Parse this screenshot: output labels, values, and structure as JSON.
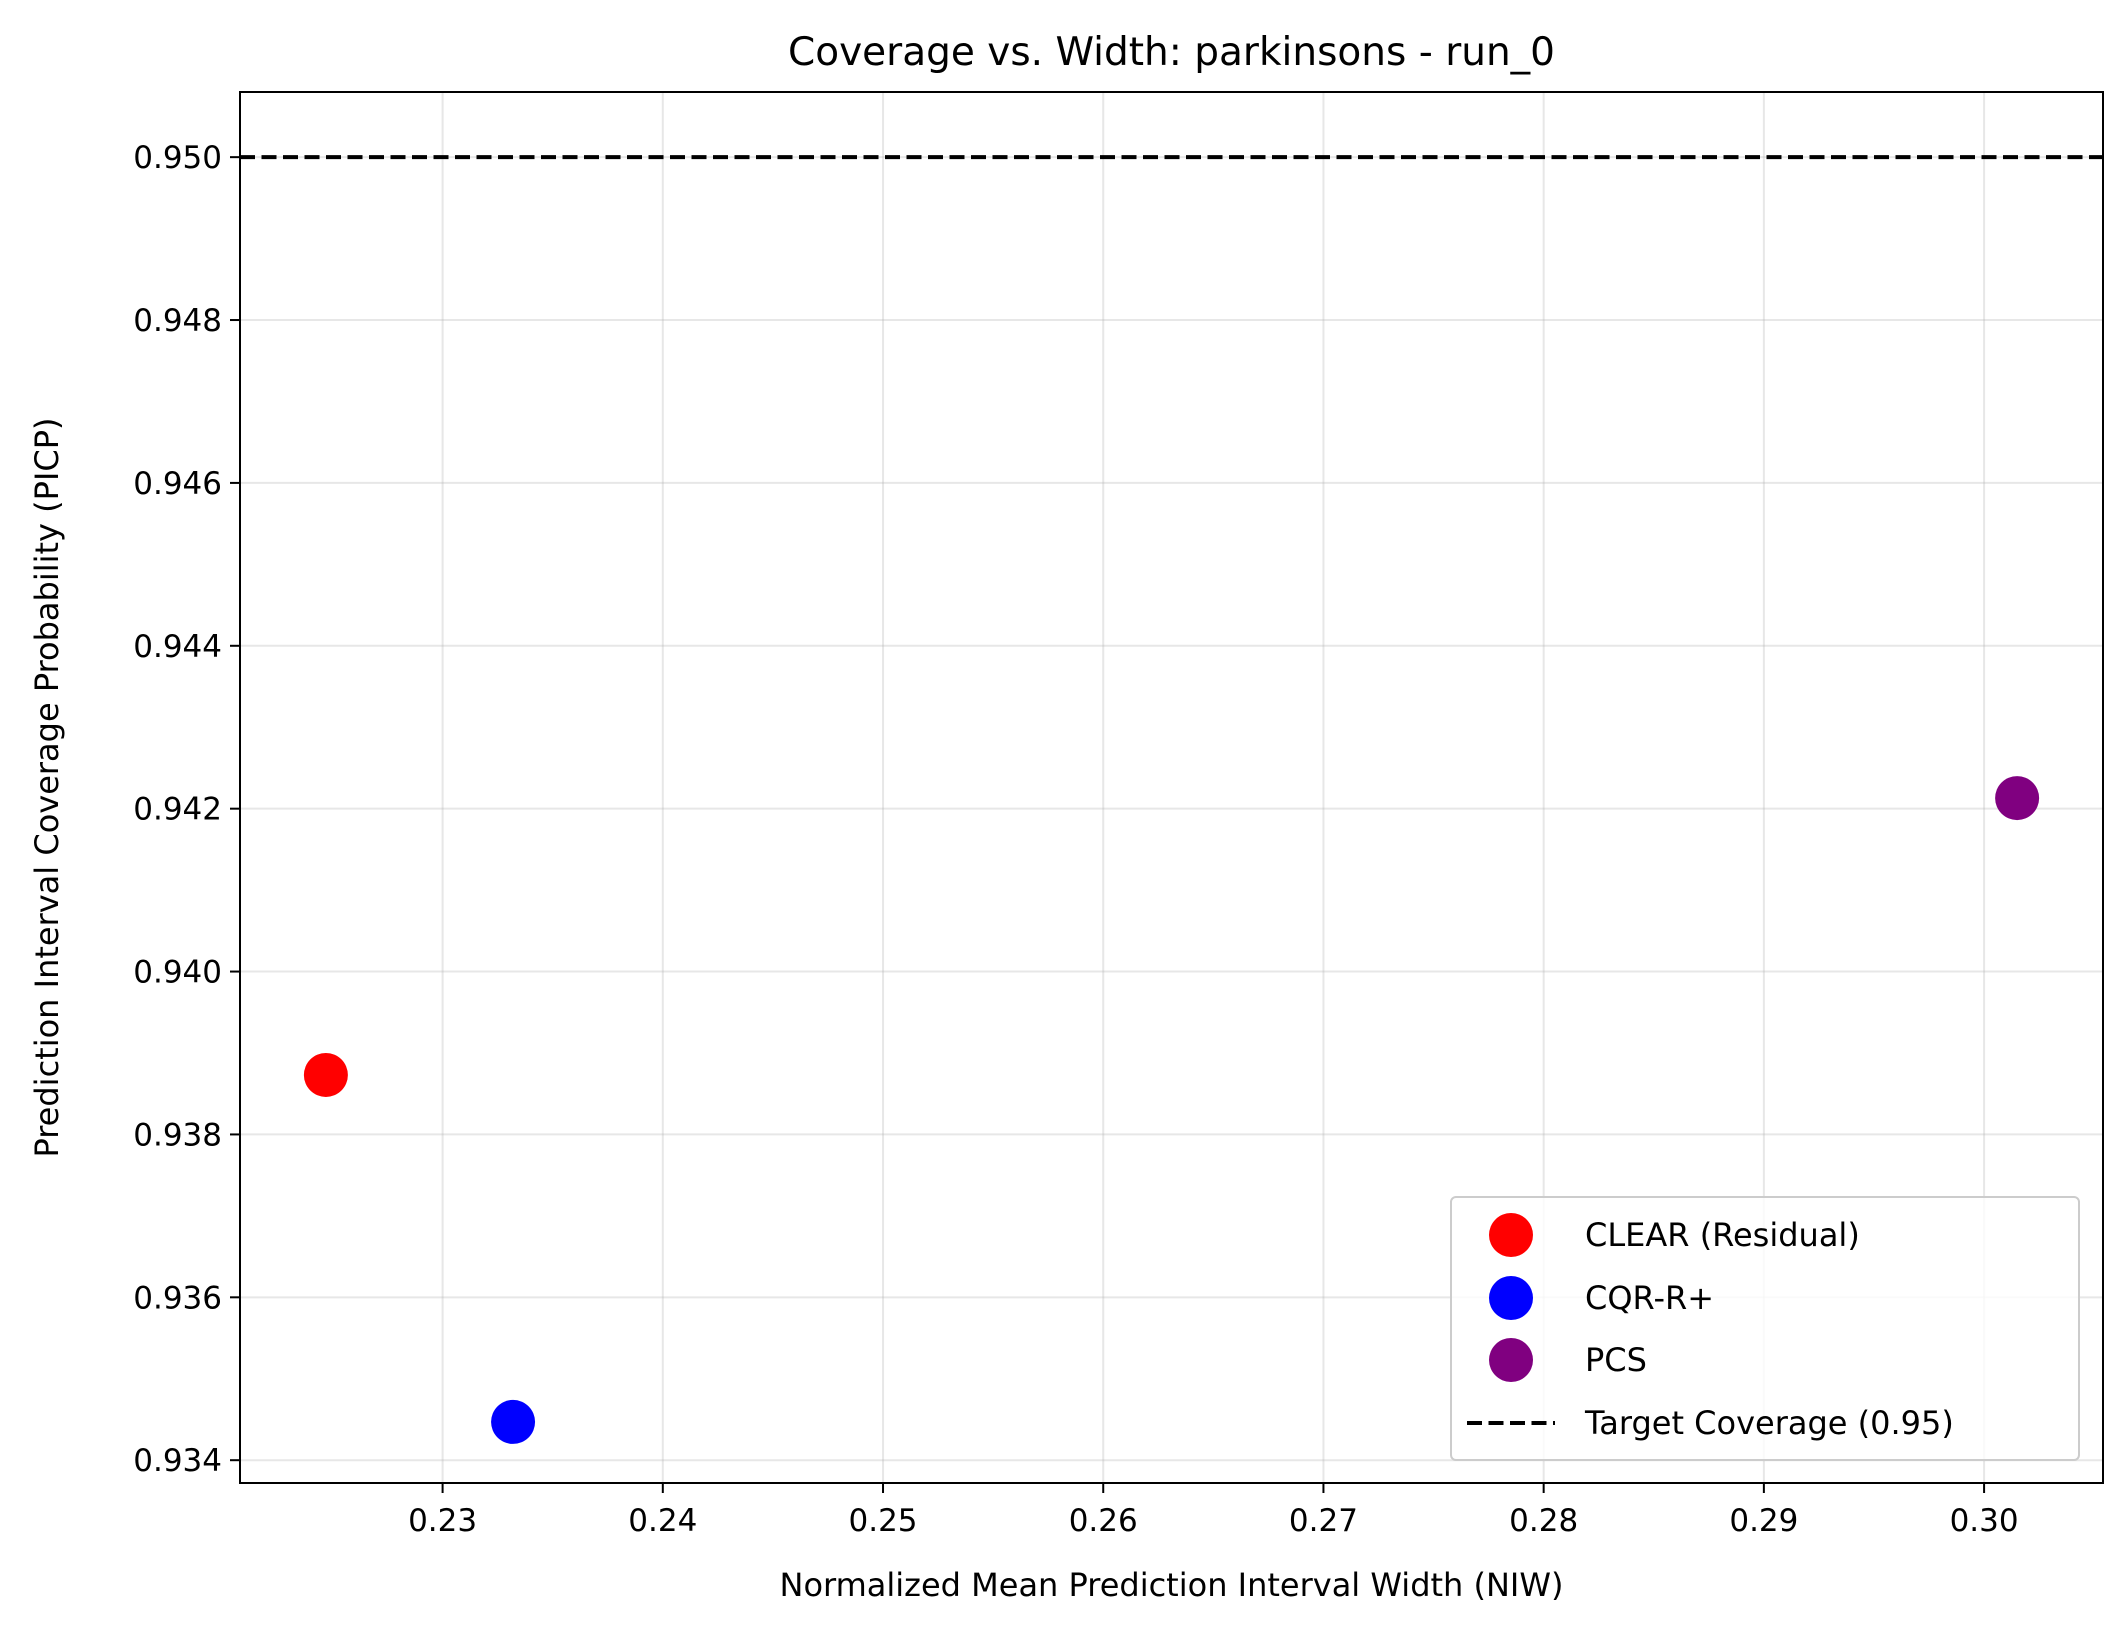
{
  "chart_data": {
    "type": "scatter",
    "title": "Coverage vs. Width: parkinsons - run_0",
    "xlabel": "Normalized Mean Prediction Interval Width (NIW)",
    "ylabel": "Prediction Interval Coverage Probability (PICP)",
    "xlim": [
      0.2208,
      0.3054
    ],
    "ylim": [
      0.93372,
      0.9508
    ],
    "xticks": [
      0.23,
      0.24,
      0.25,
      0.26,
      0.27,
      0.28,
      0.29,
      0.3
    ],
    "xtick_labels": [
      "0.23",
      "0.24",
      "0.25",
      "0.26",
      "0.27",
      "0.28",
      "0.29",
      "0.30"
    ],
    "yticks": [
      0.934,
      0.936,
      0.938,
      0.94,
      0.942,
      0.944,
      0.946,
      0.948,
      0.95
    ],
    "ytick_labels": [
      "0.934",
      "0.936",
      "0.938",
      "0.940",
      "0.942",
      "0.944",
      "0.946",
      "0.948",
      "0.950"
    ],
    "grid": true,
    "legend_position": "bottom-right",
    "series": [
      {
        "name": "CLEAR (Residual)",
        "color": "#ff0000",
        "points": [
          {
            "x": 0.2247,
            "y": 0.93873
          }
        ]
      },
      {
        "name": "CQR-R+",
        "color": "#0000ff",
        "points": [
          {
            "x": 0.2332,
            "y": 0.93447
          }
        ]
      },
      {
        "name": "PCS",
        "color": "#800080",
        "points": [
          {
            "x": 0.3015,
            "y": 0.94213
          }
        ]
      }
    ],
    "reference_lines": [
      {
        "name": "Target Coverage (0.95)",
        "orientation": "horizontal",
        "y": 0.95,
        "color": "#000000",
        "style": "dashed"
      }
    ]
  }
}
